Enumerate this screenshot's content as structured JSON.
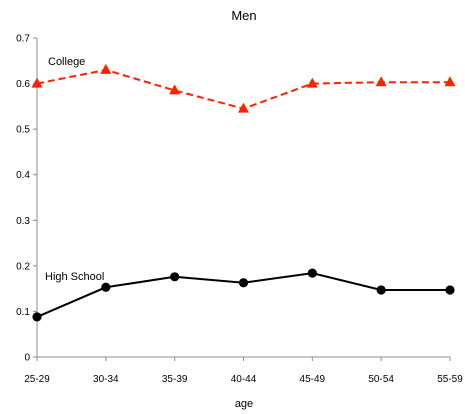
{
  "chart_data": {
    "type": "line",
    "title": "Men",
    "xlabel": "age",
    "ylabel": "",
    "categories": [
      "25-29",
      "30-34",
      "35-39",
      "40-44",
      "45-49",
      "50-54",
      "55-59"
    ],
    "ylim": [
      0,
      0.7
    ],
    "yticks": [
      "0",
      "0.1",
      "0.2",
      "0.3",
      "0.4",
      "0.5",
      "0.6",
      "0.7"
    ],
    "grid": false,
    "series": [
      {
        "name": "College",
        "values": [
          0.6,
          0.63,
          0.585,
          0.545,
          0.6,
          0.603,
          0.603
        ],
        "color": "#ff2200",
        "line": "dashed",
        "marker": "triangle"
      },
      {
        "name": "High School",
        "values": [
          0.088,
          0.153,
          0.176,
          0.163,
          0.184,
          0.147,
          0.147
        ],
        "color": "#000000",
        "line": "solid",
        "marker": "circle"
      }
    ]
  }
}
